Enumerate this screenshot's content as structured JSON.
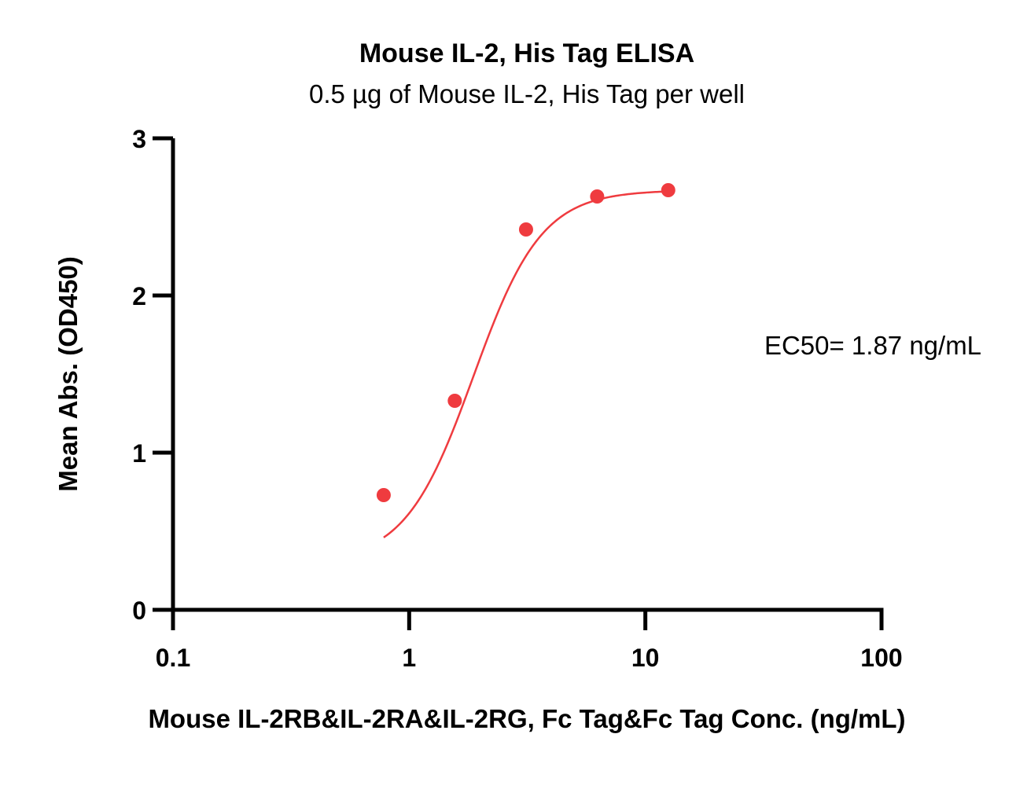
{
  "chart_data": {
    "type": "scatter",
    "title": "Mouse IL-2, His Tag ELISA",
    "subtitle": "0.5 µg of Mouse IL-2, His Tag per well",
    "xlabel": "Mouse IL-2RB&IL-2RA&IL-2RG, Fc Tag&Fc Tag Conc. (ng/mL)",
    "ylabel": "Mean Abs. (OD450)",
    "x_scale": "log",
    "xlim": [
      0.1,
      100
    ],
    "ylim": [
      0,
      3
    ],
    "x_ticks": [
      0.1,
      1,
      10,
      100
    ],
    "x_tick_labels": [
      "0.1",
      "1",
      "10",
      "100"
    ],
    "y_ticks": [
      0,
      1,
      2,
      3
    ],
    "y_tick_labels": [
      "0",
      "1",
      "2",
      "3"
    ],
    "grid": false,
    "series": [
      {
        "color": "#ef3b3f",
        "x": [
          0.78,
          1.56,
          3.125,
          6.25,
          12.5
        ],
        "y": [
          0.73,
          1.33,
          2.42,
          2.63,
          2.67
        ],
        "fit": "four-parameter logistic"
      }
    ],
    "fit_params": {
      "bottom": 0.3,
      "top": 2.67,
      "ec50": 1.87,
      "hill": 3.0
    },
    "annotation": "EC50= 1.87 ng/mL"
  }
}
